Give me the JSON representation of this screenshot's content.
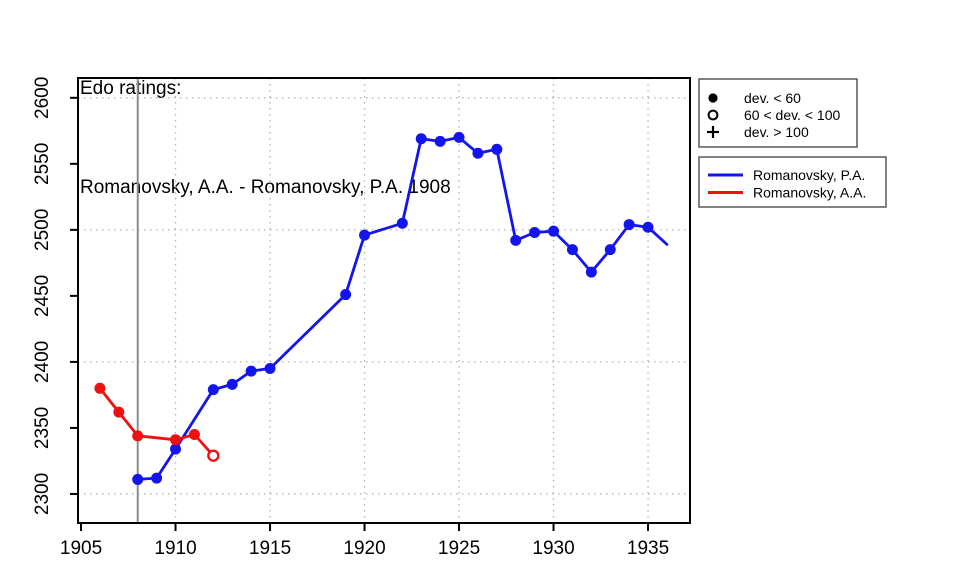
{
  "title": {
    "line1": "Edo ratings:",
    "line2": "Romanovsky, A.A. - Romanovsky, P.A. 1908"
  },
  "colors": {
    "blue": "#1414ee",
    "red": "#ee1111",
    "grid": "#b3b3b3",
    "event_line": "#8c8c8c",
    "axis": "#000000",
    "legend_border": "#4d4d4d",
    "background": "#ffffff"
  },
  "marker_legend": {
    "items": [
      {
        "marker": "filled-circle",
        "label": "dev. < 60"
      },
      {
        "marker": "open-circle",
        "label": "60 < dev. < 100"
      },
      {
        "marker": "plus",
        "label": "dev. > 100"
      }
    ]
  },
  "series_legend": {
    "items": [
      {
        "color_key": "blue",
        "label": "Romanovsky, P.A."
      },
      {
        "color_key": "red",
        "label": "Romanovsky, A.A."
      }
    ]
  },
  "chart_data": {
    "type": "line",
    "title": "Edo ratings: Romanovsky, A.A. - Romanovsky, P.A. 1908",
    "xlabel": "",
    "ylabel": "",
    "xlim": [
      1904.84,
      1937.22
    ],
    "ylim": [
      2278,
      2615
    ],
    "x_ticks": [
      1905,
      1910,
      1915,
      1920,
      1925,
      1930,
      1935
    ],
    "y_ticks": [
      2300,
      2350,
      2400,
      2450,
      2500,
      2550,
      2600
    ],
    "x_gridlines": [
      1910,
      1915,
      1920,
      1925,
      1930,
      1935
    ],
    "y_gridlines": [
      2300,
      2400,
      2500,
      2600
    ],
    "grid_style": "dotted",
    "event_year_line": 1908,
    "legend_position": "outside-top-right",
    "series": [
      {
        "name": "Romanovsky, P.A.",
        "color_key": "blue",
        "points": [
          {
            "year": 1908,
            "rating": 2311,
            "marker": "filled"
          },
          {
            "year": 1909,
            "rating": 2312,
            "marker": "filled"
          },
          {
            "year": 1910,
            "rating": 2334,
            "marker": "filled"
          },
          {
            "year": 1912,
            "rating": 2379,
            "marker": "filled"
          },
          {
            "year": 1913,
            "rating": 2383,
            "marker": "filled"
          },
          {
            "year": 1914,
            "rating": 2393,
            "marker": "filled"
          },
          {
            "year": 1915,
            "rating": 2395,
            "marker": "filled"
          },
          {
            "year": 1919,
            "rating": 2451,
            "marker": "filled"
          },
          {
            "year": 1920,
            "rating": 2496,
            "marker": "filled"
          },
          {
            "year": 1922,
            "rating": 2505,
            "marker": "filled"
          },
          {
            "year": 1923,
            "rating": 2569,
            "marker": "filled"
          },
          {
            "year": 1924,
            "rating": 2567,
            "marker": "filled"
          },
          {
            "year": 1925,
            "rating": 2570,
            "marker": "filled"
          },
          {
            "year": 1926,
            "rating": 2558,
            "marker": "filled"
          },
          {
            "year": 1927,
            "rating": 2561,
            "marker": "filled"
          },
          {
            "year": 1928,
            "rating": 2492,
            "marker": "filled"
          },
          {
            "year": 1929,
            "rating": 2498,
            "marker": "filled"
          },
          {
            "year": 1930,
            "rating": 2499,
            "marker": "filled"
          },
          {
            "year": 1931,
            "rating": 2485,
            "marker": "filled"
          },
          {
            "year": 1932,
            "rating": 2468,
            "marker": "filled"
          },
          {
            "year": 1933,
            "rating": 2485,
            "marker": "filled"
          },
          {
            "year": 1934,
            "rating": 2504,
            "marker": "filled"
          },
          {
            "year": 1935,
            "rating": 2502,
            "marker": "filled"
          },
          {
            "year": 1936,
            "rating": 2489,
            "marker": "none"
          }
        ]
      },
      {
        "name": "Romanovsky, A.A.",
        "color_key": "red",
        "points": [
          {
            "year": 1906,
            "rating": 2380,
            "marker": "filled"
          },
          {
            "year": 1907,
            "rating": 2362,
            "marker": "filled"
          },
          {
            "year": 1908,
            "rating": 2344,
            "marker": "filled"
          },
          {
            "year": 1910,
            "rating": 2341,
            "marker": "filled"
          },
          {
            "year": 1911,
            "rating": 2345,
            "marker": "filled"
          },
          {
            "year": 1912,
            "rating": 2329,
            "marker": "open"
          }
        ]
      }
    ]
  }
}
